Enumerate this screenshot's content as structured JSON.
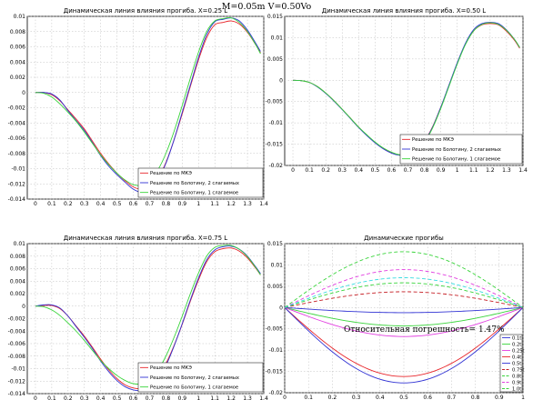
{
  "figure_title": "M=0.05m  V=0.50Vo",
  "annotation": "Относительная погрешность= 1.47%",
  "colors": {
    "red": "#e8262b",
    "blue": "#3133d4",
    "green": "#38d43a",
    "magenta": "#e23ee0",
    "cyan": "#36dbe0",
    "dark_red": "#c51e24"
  },
  "chart_data": [
    {
      "type": "line",
      "title": "Динамическая линия влияния прогиба. X=0.25 L",
      "xlim": [
        -0.05,
        1.4
      ],
      "ylim": [
        -0.014,
        0.01
      ],
      "xticks": [
        "0",
        "0.1",
        "0.2",
        "0.3",
        "0.4",
        "0.5",
        "0.6",
        "0.7",
        "0.8",
        "0.9",
        "1",
        "1.1",
        "1.2",
        "1.3",
        "1.4"
      ],
      "yticks": [
        "-0.014",
        "-0.012",
        "-0.01",
        "-0.008",
        "-0.006",
        "-0.004",
        "-0.002",
        "0",
        "0.002",
        "0.004",
        "0.006",
        "0.008",
        "0.01"
      ],
      "legend": "bottom-right",
      "series": [
        {
          "name": "Решение по МКЭ",
          "color": "#e8262b",
          "x": [
            0,
            0.05,
            0.1,
            0.15,
            0.2,
            0.25,
            0.3,
            0.35,
            0.4,
            0.45,
            0.5,
            0.55,
            0.6,
            0.65,
            0.7,
            0.75,
            0.8,
            0.85,
            0.9,
            0.95,
            1.0,
            1.05,
            1.1,
            1.15,
            1.2,
            1.25,
            1.3,
            1.35,
            1.38
          ],
          "y": [
            0,
            0,
            -0.0003,
            -0.0011,
            -0.0023,
            -0.0035,
            -0.0048,
            -0.0064,
            -0.008,
            -0.0094,
            -0.0106,
            -0.0116,
            -0.0124,
            -0.0127,
            -0.0124,
            -0.0113,
            -0.0092,
            -0.0062,
            -0.0028,
            0.0008,
            0.0043,
            0.0072,
            0.0089,
            0.0092,
            0.0094,
            0.009,
            0.0079,
            0.0063,
            0.0052
          ]
        },
        {
          "name": "Решение по Болотину, 2 слагаемых",
          "color": "#3133d4",
          "x": [
            0,
            0.05,
            0.1,
            0.15,
            0.2,
            0.25,
            0.3,
            0.35,
            0.4,
            0.45,
            0.5,
            0.55,
            0.6,
            0.65,
            0.7,
            0.75,
            0.8,
            0.85,
            0.9,
            0.95,
            1.0,
            1.05,
            1.1,
            1.15,
            1.2,
            1.25,
            1.3,
            1.35,
            1.38
          ],
          "y": [
            0,
            0,
            -0.0002,
            -0.001,
            -0.0024,
            -0.0037,
            -0.005,
            -0.0066,
            -0.0083,
            -0.0097,
            -0.0108,
            -0.0118,
            -0.0127,
            -0.0131,
            -0.0127,
            -0.0114,
            -0.0093,
            -0.0062,
            -0.0026,
            0.001,
            0.0046,
            0.0076,
            0.0093,
            0.0096,
            0.0098,
            0.0094,
            0.0082,
            0.0065,
            0.0054
          ]
        },
        {
          "name": "Решение по Болотину, 1 слагаемое",
          "color": "#38d43a",
          "x": [
            0,
            0.05,
            0.1,
            0.15,
            0.2,
            0.25,
            0.3,
            0.35,
            0.4,
            0.45,
            0.5,
            0.55,
            0.6,
            0.65,
            0.7,
            0.75,
            0.8,
            0.85,
            0.9,
            0.95,
            1.0,
            1.05,
            1.1,
            1.15,
            1.2,
            1.25,
            1.3,
            1.35,
            1.38
          ],
          "y": [
            0,
            -0.0001,
            -0.0006,
            -0.0015,
            -0.0026,
            -0.0038,
            -0.0052,
            -0.0067,
            -0.0082,
            -0.0095,
            -0.0106,
            -0.0115,
            -0.0121,
            -0.0122,
            -0.0116,
            -0.0102,
            -0.008,
            -0.0051,
            -0.0017,
            0.0019,
            0.0053,
            0.008,
            0.0094,
            0.0097,
            0.0098,
            0.0092,
            0.008,
            0.0063,
            0.0051
          ]
        }
      ]
    },
    {
      "type": "line",
      "title": "Динамическая линия влияния прогиба. X=0.50 L",
      "xlim": [
        -0.05,
        1.4
      ],
      "ylim": [
        -0.02,
        0.015
      ],
      "xticks": [
        "0",
        "0.1",
        "0.2",
        "0.3",
        "0.4",
        "0.5",
        "0.6",
        "0.7",
        "0.8",
        "0.9",
        "1",
        "1.1",
        "1.2",
        "1.3",
        "1.4"
      ],
      "yticks": [
        "-0.02",
        "-0.015",
        "-0.01",
        "-0.005",
        "0",
        "0.005",
        "0.01",
        "0.015"
      ],
      "legend": "bottom-right",
      "series": [
        {
          "name": "Решение по МКЭ",
          "color": "#e8262b",
          "x": [
            0,
            0.05,
            0.1,
            0.15,
            0.2,
            0.25,
            0.3,
            0.35,
            0.4,
            0.45,
            0.5,
            0.55,
            0.6,
            0.65,
            0.7,
            0.75,
            0.8,
            0.85,
            0.9,
            0.95,
            1.0,
            1.05,
            1.1,
            1.15,
            1.2,
            1.25,
            1.3,
            1.35,
            1.38
          ],
          "y": [
            0,
            -0.0001,
            -0.0005,
            -0.0015,
            -0.003,
            -0.0048,
            -0.0068,
            -0.0089,
            -0.011,
            -0.0129,
            -0.0146,
            -0.016,
            -0.017,
            -0.0175,
            -0.0174,
            -0.0164,
            -0.0143,
            -0.0109,
            -0.0063,
            -0.0012,
            0.004,
            0.0085,
            0.0116,
            0.013,
            0.0133,
            0.013,
            0.0115,
            0.0093,
            0.0075
          ]
        },
        {
          "name": "Решение по Болотину, 2 слагаемых",
          "color": "#3133d4",
          "x": [
            0,
            0.05,
            0.1,
            0.15,
            0.2,
            0.25,
            0.3,
            0.35,
            0.4,
            0.45,
            0.5,
            0.55,
            0.6,
            0.65,
            0.7,
            0.75,
            0.8,
            0.85,
            0.9,
            0.95,
            1.0,
            1.05,
            1.1,
            1.15,
            1.2,
            1.25,
            1.3,
            1.35,
            1.38
          ],
          "y": [
            0,
            -0.0001,
            -0.0005,
            -0.0016,
            -0.0031,
            -0.0049,
            -0.0069,
            -0.009,
            -0.0111,
            -0.013,
            -0.0147,
            -0.0161,
            -0.0171,
            -0.0176,
            -0.0175,
            -0.0165,
            -0.0144,
            -0.011,
            -0.0063,
            -0.0011,
            0.0041,
            0.0087,
            0.0119,
            0.0133,
            0.0136,
            0.0133,
            0.0118,
            0.0095,
            0.0077
          ]
        },
        {
          "name": "Решение по Болотину, 1 слагаемое",
          "color": "#38d43a",
          "x": [
            0,
            0.05,
            0.1,
            0.15,
            0.2,
            0.25,
            0.3,
            0.35,
            0.4,
            0.45,
            0.5,
            0.55,
            0.6,
            0.65,
            0.7,
            0.75,
            0.8,
            0.85,
            0.9,
            0.95,
            1.0,
            1.05,
            1.1,
            1.15,
            1.2,
            1.25,
            1.3,
            1.35,
            1.38
          ],
          "y": [
            0,
            -0.0001,
            -0.0005,
            -0.0015,
            -0.003,
            -0.0048,
            -0.0068,
            -0.0089,
            -0.011,
            -0.0128,
            -0.0145,
            -0.0159,
            -0.0169,
            -0.0175,
            -0.0175,
            -0.0166,
            -0.0146,
            -0.0112,
            -0.0066,
            -0.0014,
            0.0038,
            0.0084,
            0.0116,
            0.0131,
            0.0135,
            0.0131,
            0.0117,
            0.0095,
            0.0077
          ]
        }
      ]
    },
    {
      "type": "line",
      "title": "Динамическая линия влияния прогиба. X=0.75 L",
      "xlim": [
        -0.05,
        1.4
      ],
      "ylim": [
        -0.014,
        0.01
      ],
      "xticks": [
        "0",
        "0.1",
        "0.2",
        "0.3",
        "0.4",
        "0.5",
        "0.6",
        "0.7",
        "0.8",
        "0.9",
        "1",
        "1.1",
        "1.2",
        "1.3",
        "1.4"
      ],
      "yticks": [
        "-0.014",
        "-0.012",
        "-0.01",
        "-0.008",
        "-0.006",
        "-0.004",
        "-0.002",
        "0",
        "0.002",
        "0.004",
        "0.006",
        "0.008",
        "0.01"
      ],
      "legend": "bottom-right",
      "series": [
        {
          "name": "Решение по МКЭ",
          "color": "#e8262b",
          "x": [
            0,
            0.05,
            0.1,
            0.15,
            0.2,
            0.25,
            0.3,
            0.35,
            0.4,
            0.45,
            0.5,
            0.55,
            0.6,
            0.65,
            0.7,
            0.75,
            0.8,
            0.85,
            0.9,
            0.95,
            1.0,
            1.05,
            1.1,
            1.15,
            1.2,
            1.25,
            1.3,
            1.35,
            1.38
          ],
          "y": [
            0,
            0.0001,
            0.0001,
            -0.0004,
            -0.0016,
            -0.0032,
            -0.0048,
            -0.0066,
            -0.0085,
            -0.0102,
            -0.0116,
            -0.0126,
            -0.0131,
            -0.0132,
            -0.0126,
            -0.0113,
            -0.0092,
            -0.0063,
            -0.0029,
            0.0008,
            0.0042,
            0.0071,
            0.0087,
            0.0092,
            0.0093,
            0.0088,
            0.0077,
            0.0061,
            0.005
          ]
        },
        {
          "name": "Решение по Болотину, 2 слагаемых",
          "color": "#3133d4",
          "x": [
            0,
            0.05,
            0.1,
            0.15,
            0.2,
            0.25,
            0.3,
            0.35,
            0.4,
            0.45,
            0.5,
            0.55,
            0.6,
            0.65,
            0.7,
            0.75,
            0.8,
            0.85,
            0.9,
            0.95,
            1.0,
            1.05,
            1.1,
            1.15,
            1.2,
            1.25,
            1.3,
            1.35,
            1.38
          ],
          "y": [
            0,
            0.0002,
            0.0002,
            -0.0003,
            -0.0016,
            -0.0033,
            -0.005,
            -0.0068,
            -0.0088,
            -0.0105,
            -0.0119,
            -0.0129,
            -0.0134,
            -0.0135,
            -0.0129,
            -0.0116,
            -0.0095,
            -0.0064,
            -0.0028,
            0.001,
            0.0045,
            0.0074,
            0.009,
            0.0095,
            0.0096,
            0.0091,
            0.008,
            0.0063,
            0.0052
          ]
        },
        {
          "name": "Решение по Болотину, 1 слагаемое",
          "color": "#38d43a",
          "x": [
            0,
            0.05,
            0.1,
            0.15,
            0.2,
            0.25,
            0.3,
            0.35,
            0.4,
            0.45,
            0.5,
            0.55,
            0.6,
            0.65,
            0.7,
            0.75,
            0.8,
            0.85,
            0.9,
            0.95,
            1.0,
            1.05,
            1.1,
            1.15,
            1.2,
            1.25,
            1.3,
            1.35,
            1.38
          ],
          "y": [
            0,
            -0.0001,
            -0.0006,
            -0.0015,
            -0.0027,
            -0.004,
            -0.0055,
            -0.0071,
            -0.0087,
            -0.01,
            -0.0111,
            -0.0119,
            -0.0124,
            -0.0124,
            -0.0117,
            -0.0103,
            -0.008,
            -0.005,
            -0.0016,
            0.002,
            0.0053,
            0.008,
            0.0094,
            0.0097,
            0.0097,
            0.0091,
            0.0079,
            0.0062,
            0.005
          ]
        }
      ]
    },
    {
      "type": "line",
      "title": "Динамические прогибы",
      "xlim": [
        0,
        1
      ],
      "ylim": [
        -0.02,
        0.015
      ],
      "xticks": [
        "0",
        "0.1",
        "0.2",
        "0.3",
        "0.4",
        "0.5",
        "0.6",
        "0.7",
        "0.8",
        "0.9",
        "1"
      ],
      "yticks": [
        "-0.02",
        "-0.015",
        "-0.01",
        "-0.005",
        "0",
        "0.005",
        "0.01",
        "0.015"
      ],
      "legend": "bottom-right",
      "series": [
        {
          "name": "0.1t",
          "color": "#3133d4",
          "dash": false,
          "shape": "sin",
          "amplitude": -0.0012
        },
        {
          "name": "0.2t",
          "color": "#38d43a",
          "dash": false,
          "shape": "sin",
          "amplitude": -0.0043
        },
        {
          "name": "0.25t",
          "color": "#e23ee0",
          "dash": false,
          "shape": "sin",
          "amplitude": -0.0068
        },
        {
          "name": "0.4t",
          "color": "#e8262b",
          "dash": false,
          "shape": "sin",
          "amplitude": -0.0162
        },
        {
          "name": "0.5t",
          "color": "#3133d4",
          "dash": false,
          "shape": "sin",
          "amplitude": -0.0177
        },
        {
          "name": "0.75t",
          "color": "#c51e24",
          "dash": true,
          "shape": "sin",
          "amplitude": 0.0037
        },
        {
          "name": "0.8t",
          "color": "#38d43a",
          "dash": true,
          "shape": "sin",
          "amplitude": 0.0058
        },
        {
          "name": "0.9t",
          "color": "#e23ee0",
          "dash": true,
          "shape": "sin",
          "amplitude": 0.0089
        },
        {
          "name": "1.0t",
          "color": "#38d43a",
          "dash": true,
          "shape": "sin",
          "amplitude": 0.0131
        },
        {
          "name": "",
          "color": "#36dbe0",
          "dash": true,
          "shape": "sin",
          "amplitude": 0.007
        }
      ]
    }
  ]
}
